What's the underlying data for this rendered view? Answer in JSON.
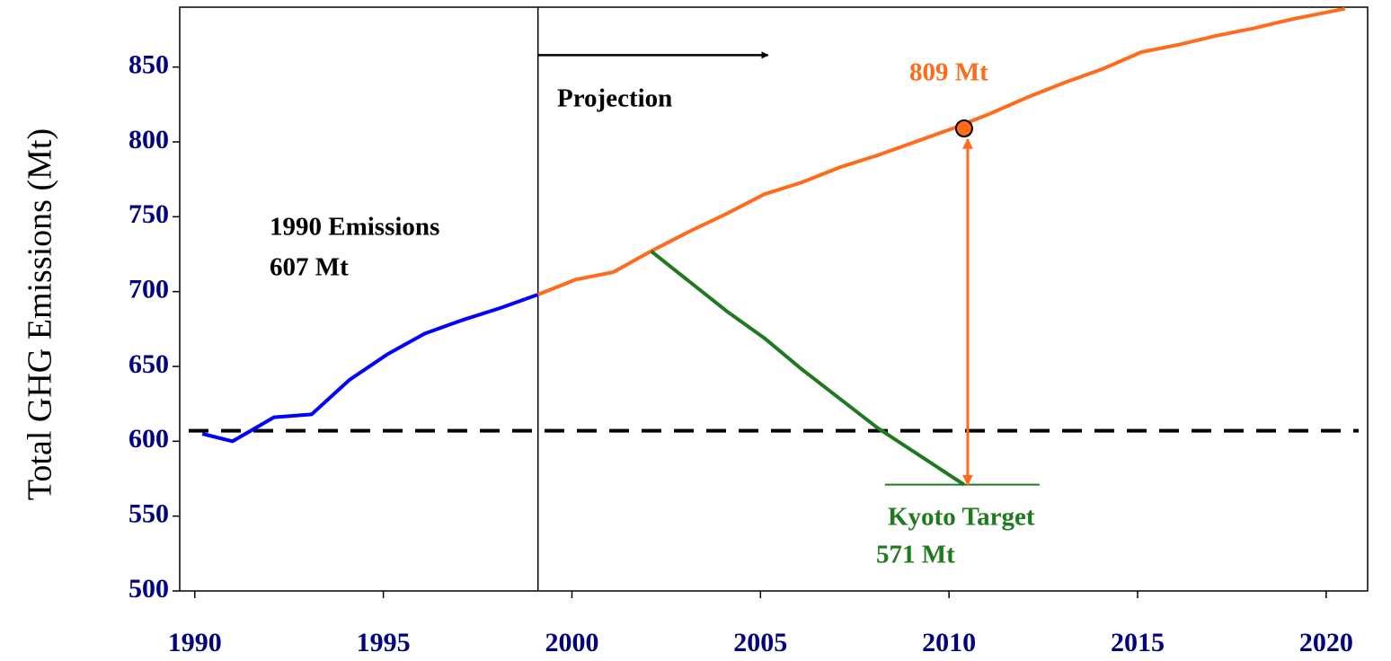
{
  "chart_data": {
    "type": "line",
    "xlim": [
      1989.6,
      2021.1
    ],
    "ylim": [
      500,
      890
    ],
    "xticks": [
      1990,
      1995,
      2000,
      2005,
      2010,
      2015,
      2020
    ],
    "yticks": [
      500,
      550,
      600,
      650,
      700,
      750,
      800,
      850
    ],
    "y_label": "Total GHG Emissions (Mt)",
    "series": [
      {
        "color": "#0000ff",
        "x": [
          1990.2,
          1991.0,
          1992.1,
          1993.1,
          1994.1,
          1995.1,
          1996.1,
          1997.1,
          1998.1,
          1999.1
        ],
        "values": [
          605,
          600,
          616,
          618,
          641,
          658,
          672,
          681,
          689,
          698
        ]
      },
      {
        "color": "#ff6b1a",
        "x": [
          1999.1,
          2000.1,
          2001.1,
          2002.1,
          2003.1,
          2004.1,
          2005.1,
          2006.1,
          2007.1,
          2008.1,
          2009.1,
          2010.1,
          2011.1,
          2012.1,
          2013.1,
          2014.1,
          2015.1,
          2016.1,
          2017.1,
          2018.1,
          2019.1,
          2020.5
        ],
        "values": [
          698,
          708,
          713,
          727,
          740,
          752,
          765,
          773,
          783,
          791,
          800,
          809,
          819,
          830,
          840,
          849,
          860,
          865,
          871,
          876,
          882,
          889
        ]
      },
      {
        "color": "#1f7a1f",
        "x": [
          2002.1,
          2004.1,
          2005.1,
          2006.1,
          2008.1,
          2010.4
        ],
        "values": [
          727,
          687,
          669,
          648,
          609,
          571
        ]
      }
    ],
    "baseline": {
      "value": 607,
      "color": "#000000"
    },
    "projection": {
      "start": 1999.1,
      "arrow_end": 2005.2,
      "arrow_y": 858,
      "label": "Projection"
    },
    "baseline_label": [
      "1990 Emissions",
      "607 Mt"
    ],
    "marker": {
      "x": 2010.4,
      "y": 809,
      "label": "809 Mt",
      "color": "#ff6b1a"
    },
    "target": {
      "value": 571,
      "x": [
        2008.3,
        2012.4
      ],
      "color": "#1f7a1f",
      "label": [
        "Kyoto Target",
        "571 Mt"
      ]
    }
  }
}
